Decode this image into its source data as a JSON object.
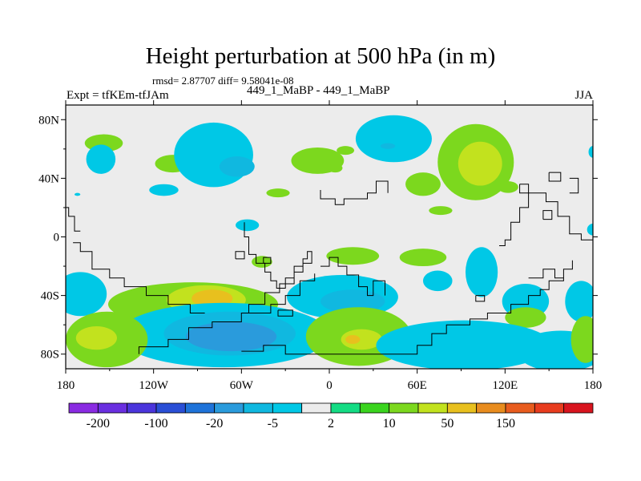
{
  "title": "Height perturbation at 500 hPa (in m)",
  "stats_text": "rmsd= 2.87707  diff= 9.58041e-08",
  "left_label": "Expt = tfKEm-tfJAm",
  "center_label": "449_1_MaBP - 449_1_MaBP",
  "right_label": "JJA",
  "chart_data": {
    "type": "heatmap",
    "title": "Height perturbation at 500 hPa (in m)",
    "projection": "cylindrical-equidistant",
    "xlim": [
      -180,
      180
    ],
    "ylim": [
      -90,
      90
    ],
    "x_ticks": [
      {
        "value": -180,
        "label": "180"
      },
      {
        "value": -120,
        "label": "120W"
      },
      {
        "value": -60,
        "label": "60W"
      },
      {
        "value": 0,
        "label": "0"
      },
      {
        "value": 60,
        "label": "60E"
      },
      {
        "value": 120,
        "label": "120E"
      },
      {
        "value": 180,
        "label": "180"
      }
    ],
    "y_ticks": [
      {
        "value": 80,
        "label": "80N"
      },
      {
        "value": 40,
        "label": "40N"
      },
      {
        "value": 0,
        "label": "0"
      },
      {
        "value": -40,
        "label": "40S"
      },
      {
        "value": -80,
        "label": "80S"
      }
    ],
    "levels": [
      -200,
      -150,
      -100,
      -50,
      -20,
      -10,
      -5,
      -2,
      2,
      5,
      10,
      20,
      50,
      100,
      150,
      200
    ],
    "level_labels": [
      {
        "level": -200,
        "label": "-200"
      },
      {
        "level": -100,
        "label": "-100"
      },
      {
        "level": -20,
        "label": "-20"
      },
      {
        "level": -5,
        "label": "-5"
      },
      {
        "level": 2,
        "label": "2"
      },
      {
        "level": 10,
        "label": "10"
      },
      {
        "level": 50,
        "label": "50"
      },
      {
        "level": 150,
        "label": "150"
      }
    ],
    "colors": [
      "#8a2be2",
      "#6a2fe0",
      "#4b35dc",
      "#2a4fd6",
      "#1e73d9",
      "#2a9bdc",
      "#10b8e0",
      "#00c8e6",
      "#ececec",
      "#14dc84",
      "#3ad41e",
      "#7cd81e",
      "#c2e21e",
      "#e8c01e",
      "#e88c1e",
      "#e85c1e",
      "#e83c1e",
      "#d8141e"
    ],
    "background": "#ececec",
    "fields": [
      {
        "level": 10,
        "lon": -8,
        "lat": 52,
        "rlon": 18,
        "rlat": 9
      },
      {
        "level": 10,
        "lon": -107,
        "lat": 50,
        "rlon": 12,
        "rlat": 6
      },
      {
        "level": 10,
        "lon": -35,
        "lat": 30,
        "rlon": 8,
        "rlat": 3
      },
      {
        "level": -5,
        "lon": -79,
        "lat": 56,
        "rlon": 27,
        "rlat": 22
      },
      {
        "level": -10,
        "lon": -63,
        "lat": 48,
        "rlon": 12,
        "rlat": 7
      },
      {
        "level": -5,
        "lon": 44,
        "lat": 67,
        "rlon": 26,
        "rlat": 16
      },
      {
        "level": -10,
        "lon": 40,
        "lat": 62,
        "rlon": 5,
        "rlat": 2
      },
      {
        "level": 10,
        "lon": 100,
        "lat": 51,
        "rlon": 26,
        "rlat": 26
      },
      {
        "level": 20,
        "lon": 103,
        "lat": 50,
        "rlon": 15,
        "rlat": 15
      },
      {
        "level": 10,
        "lon": 64,
        "lat": 36,
        "rlon": 12,
        "rlat": 8
      },
      {
        "level": 10,
        "lon": 11,
        "lat": 59,
        "rlon": 6,
        "rlat": 3
      },
      {
        "level": 10,
        "lon": 4,
        "lat": 47,
        "rlon": 5,
        "rlat": 3
      },
      {
        "level": 10,
        "lon": -154,
        "lat": 64,
        "rlon": 13,
        "rlat": 6
      },
      {
        "level": -5,
        "lon": -156,
        "lat": 53,
        "rlon": 10,
        "rlat": 10
      },
      {
        "level": -5,
        "lon": -113,
        "lat": 32,
        "rlon": 10,
        "rlat": 4
      },
      {
        "level": -5,
        "lon": -56,
        "lat": 8,
        "rlon": 8,
        "rlat": 4
      },
      {
        "level": -5,
        "lon": 180,
        "lat": 58,
        "rlon": 3,
        "rlat": 4
      },
      {
        "level": 10,
        "lon": 122,
        "lat": 34,
        "rlon": 7,
        "rlat": 4
      },
      {
        "level": -5,
        "lon": 180,
        "lat": 5,
        "rlon": 4,
        "rlat": 4
      },
      {
        "level": -5,
        "lon": -172,
        "lat": 29,
        "rlon": 2,
        "rlat": 1
      },
      {
        "level": -5,
        "lon": 104,
        "lat": -24,
        "rlon": 11,
        "rlat": 17
      },
      {
        "level": -5,
        "lon": 74,
        "lat": -30,
        "rlon": 10,
        "rlat": 7
      },
      {
        "level": 10,
        "lon": 64,
        "lat": -14,
        "rlon": 16,
        "rlat": 6
      },
      {
        "level": 10,
        "lon": 16,
        "lat": -13,
        "rlon": 18,
        "rlat": 6
      },
      {
        "level": 10,
        "lon": 76,
        "lat": 18,
        "rlon": 8,
        "rlat": 3
      },
      {
        "level": 10,
        "lon": -46,
        "lat": -17,
        "rlon": 7,
        "rlat": 4
      },
      {
        "level": -5,
        "lon": 172,
        "lat": -44,
        "rlon": 11,
        "rlat": 14
      },
      {
        "level": -5,
        "lon": 134,
        "lat": -44,
        "rlon": 16,
        "rlat": 12
      },
      {
        "level": 10,
        "lon": 134,
        "lat": -55,
        "rlon": 14,
        "rlat": 7
      },
      {
        "level": 10,
        "lon": -93,
        "lat": -46,
        "rlon": 58,
        "rlat": 15
      },
      {
        "level": 20,
        "lon": -84,
        "lat": -43,
        "rlon": 27,
        "rlat": 10
      },
      {
        "level": 50,
        "lon": -80,
        "lat": -42,
        "rlon": 14,
        "rlat": 6
      },
      {
        "level": -5,
        "lon": -170,
        "lat": -39,
        "rlon": 18,
        "rlat": 15
      },
      {
        "level": -5,
        "lon": 9,
        "lat": -41,
        "rlon": 38,
        "rlat": 15
      },
      {
        "level": -10,
        "lon": 16,
        "lat": -44,
        "rlon": 22,
        "rlat": 8
      },
      {
        "level": -5,
        "lon": -72,
        "lat": -67,
        "rlon": 72,
        "rlat": 22
      },
      {
        "level": -10,
        "lon": -68,
        "lat": -66,
        "rlon": 45,
        "rlat": 15
      },
      {
        "level": -20,
        "lon": -67,
        "lat": -68,
        "rlon": 31,
        "rlat": 10
      },
      {
        "level": 10,
        "lon": -152,
        "lat": -70,
        "rlon": 28,
        "rlat": 19
      },
      {
        "level": 20,
        "lon": -159,
        "lat": -69,
        "rlon": 14,
        "rlat": 8
      },
      {
        "level": 10,
        "lon": 20,
        "lat": -68,
        "rlon": 36,
        "rlat": 20
      },
      {
        "level": 20,
        "lon": 22,
        "lat": -70,
        "rlon": 14,
        "rlat": 7
      },
      {
        "level": 50,
        "lon": 16,
        "lat": -70,
        "rlon": 5,
        "rlat": 3
      },
      {
        "level": -5,
        "lon": 92,
        "lat": -74,
        "rlon": 60,
        "rlat": 17
      },
      {
        "level": -5,
        "lon": 158,
        "lat": -78,
        "rlon": 30,
        "rlat": 14
      },
      {
        "level": 10,
        "lon": 175,
        "lat": -70,
        "rlon": 10,
        "rlat": 16
      }
    ],
    "coastlines": [
      [
        [
          -130,
          -80
        ],
        [
          -130,
          -75
        ],
        [
          -110,
          -75
        ],
        [
          -110,
          -70
        ],
        [
          -96,
          -70
        ],
        [
          -96,
          -62
        ],
        [
          -80,
          -62
        ],
        [
          -80,
          -58
        ],
        [
          -60,
          -58
        ],
        [
          -60,
          -52
        ],
        [
          -40,
          -52
        ],
        [
          -40,
          -46
        ],
        [
          -30,
          -46
        ],
        [
          -30,
          -40
        ],
        [
          -20,
          -40
        ],
        [
          -20,
          -30
        ],
        [
          -10,
          -30
        ],
        [
          -10,
          -25
        ]
      ],
      [
        [
          -175,
          -4
        ],
        [
          -170,
          -4
        ],
        [
          -170,
          -10
        ],
        [
          -162,
          -10
        ],
        [
          -162,
          -22
        ],
        [
          -150,
          -22
        ],
        [
          -150,
          -28
        ],
        [
          -140,
          -28
        ],
        [
          -140,
          -34
        ],
        [
          -125,
          -34
        ],
        [
          -125,
          -40
        ],
        [
          -110,
          -40
        ],
        [
          -110,
          -46
        ],
        [
          -95,
          -46
        ],
        [
          -95,
          -52
        ],
        [
          -85,
          -52
        ]
      ],
      [
        [
          -180,
          20
        ],
        [
          -178,
          20
        ],
        [
          -178,
          14
        ],
        [
          -174,
          14
        ],
        [
          -174,
          4
        ],
        [
          -170,
          4
        ]
      ],
      [
        [
          -58,
          10
        ],
        [
          -58,
          0
        ],
        [
          -55,
          0
        ],
        [
          -55,
          -12
        ],
        [
          -50,
          -12
        ],
        [
          -50,
          -18
        ],
        [
          -44,
          -18
        ],
        [
          -44,
          -24
        ],
        [
          -40,
          -24
        ],
        [
          -40,
          -30
        ],
        [
          -36,
          -30
        ],
        [
          -36,
          -35
        ],
        [
          -30,
          -35
        ],
        [
          -30,
          -28
        ],
        [
          -24,
          -28
        ],
        [
          -24,
          -20
        ],
        [
          -18,
          -20
        ],
        [
          -18,
          -15
        ],
        [
          -15,
          -15
        ],
        [
          -15,
          -10
        ],
        [
          -12,
          -10
        ],
        [
          -12,
          -18
        ],
        [
          -18,
          -18
        ],
        [
          -18,
          -24
        ],
        [
          -24,
          -24
        ],
        [
          -24,
          -32
        ],
        [
          -34,
          -32
        ],
        [
          -34,
          -38
        ],
        [
          -44,
          -38
        ],
        [
          -44,
          -46
        ],
        [
          -55,
          -46
        ],
        [
          -55,
          -52
        ],
        [
          -60,
          -52
        ]
      ],
      [
        [
          -64,
          -15
        ],
        [
          -58,
          -15
        ],
        [
          -58,
          -10
        ],
        [
          -64,
          -10
        ],
        [
          -64,
          -15
        ]
      ],
      [
        [
          -45,
          -18
        ],
        [
          -40,
          -18
        ],
        [
          -40,
          -14
        ],
        [
          -45,
          -14
        ],
        [
          -45,
          -18
        ]
      ],
      [
        [
          -35,
          -50
        ],
        [
          -25,
          -50
        ],
        [
          -25,
          -54
        ],
        [
          -35,
          -54
        ],
        [
          -35,
          -50
        ]
      ],
      [
        [
          -6,
          -20
        ],
        [
          0,
          -20
        ],
        [
          0,
          -14
        ],
        [
          6,
          -14
        ],
        [
          6,
          -20
        ],
        [
          12,
          -20
        ],
        [
          12,
          -26
        ],
        [
          20,
          -26
        ],
        [
          20,
          -34
        ],
        [
          26,
          -34
        ],
        [
          26,
          -40
        ],
        [
          30,
          -40
        ],
        [
          30,
          -30
        ],
        [
          38,
          -30
        ],
        [
          38,
          -40
        ]
      ],
      [
        [
          -6,
          32
        ],
        [
          -6,
          26
        ],
        [
          4,
          26
        ],
        [
          4,
          22
        ],
        [
          10,
          22
        ],
        [
          10,
          26
        ],
        [
          26,
          26
        ],
        [
          26,
          30
        ],
        [
          32,
          30
        ],
        [
          32,
          38
        ],
        [
          40,
          38
        ],
        [
          40,
          30
        ]
      ],
      [
        [
          -60,
          -78
        ],
        [
          -45,
          -78
        ],
        [
          -45,
          -74
        ],
        [
          -30,
          -74
        ],
        [
          -30,
          -80
        ],
        [
          0,
          -80
        ],
        [
          20,
          -80
        ],
        [
          40,
          -80
        ],
        [
          60,
          -80
        ],
        [
          60,
          -74
        ],
        [
          70,
          -74
        ],
        [
          70,
          -66
        ],
        [
          80,
          -66
        ],
        [
          80,
          -60
        ],
        [
          96,
          -60
        ],
        [
          96,
          -56
        ],
        [
          108,
          -56
        ],
        [
          108,
          -52
        ],
        [
          124,
          -52
        ],
        [
          124,
          -46
        ],
        [
          136,
          -46
        ],
        [
          136,
          -40
        ],
        [
          144,
          -40
        ],
        [
          144,
          -36
        ],
        [
          150,
          -36
        ],
        [
          150,
          -30
        ],
        [
          160,
          -30
        ],
        [
          160,
          -22
        ],
        [
          166,
          -22
        ],
        [
          166,
          -16
        ]
      ],
      [
        [
          100,
          -40
        ],
        [
          106,
          -40
        ],
        [
          106,
          -44
        ],
        [
          100,
          -44
        ],
        [
          100,
          -40
        ]
      ],
      [
        [
          116,
          -6
        ],
        [
          120,
          -6
        ],
        [
          120,
          -2
        ],
        [
          124,
          -2
        ],
        [
          124,
          10
        ],
        [
          130,
          10
        ],
        [
          130,
          20
        ],
        [
          136,
          20
        ],
        [
          136,
          30
        ],
        [
          148,
          30
        ],
        [
          148,
          24
        ],
        [
          156,
          24
        ],
        [
          156,
          14
        ],
        [
          164,
          14
        ],
        [
          164,
          2
        ],
        [
          172,
          2
        ],
        [
          172,
          -2
        ],
        [
          180,
          -2
        ]
      ],
      [
        [
          146,
          12
        ],
        [
          152,
          12
        ],
        [
          152,
          18
        ],
        [
          146,
          18
        ],
        [
          146,
          12
        ]
      ],
      [
        [
          130,
          36
        ],
        [
          136,
          36
        ],
        [
          136,
          30
        ],
        [
          130,
          30
        ],
        [
          130,
          36
        ]
      ],
      [
        [
          150,
          44
        ],
        [
          158,
          44
        ],
        [
          158,
          38
        ],
        [
          150,
          38
        ],
        [
          150,
          44
        ]
      ],
      [
        [
          164,
          40
        ],
        [
          170,
          40
        ],
        [
          170,
          30
        ],
        [
          164,
          30
        ]
      ],
      [
        [
          136,
          -28
        ],
        [
          146,
          -28
        ],
        [
          146,
          -22
        ],
        [
          154,
          -22
        ],
        [
          154,
          -28
        ],
        [
          160,
          -28
        ]
      ]
    ]
  }
}
